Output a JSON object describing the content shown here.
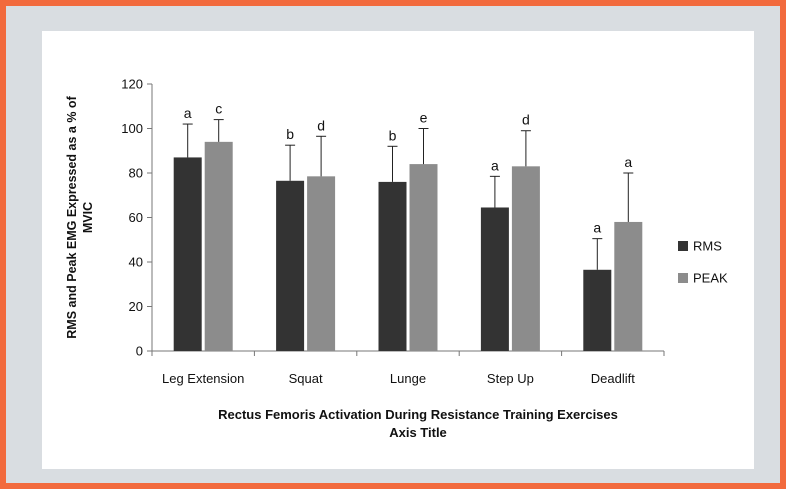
{
  "chart_data": {
    "type": "bar",
    "categories": [
      "Leg Extension",
      "Squat",
      "Lunge",
      "Step Up",
      "Deadlift"
    ],
    "series": [
      {
        "name": "RMS",
        "values": [
          87,
          76.5,
          76,
          64.5,
          36.5
        ],
        "errors": [
          15,
          16,
          16,
          14,
          14
        ],
        "significance": [
          "a",
          "b",
          "b",
          "a",
          "a"
        ],
        "color": "#333333"
      },
      {
        "name": "PEAK",
        "values": [
          94,
          78.5,
          84,
          83,
          58
        ],
        "errors": [
          10,
          18,
          16,
          16,
          22
        ],
        "significance": [
          "c",
          "d",
          "e",
          "d",
          "a"
        ],
        "color": "#8c8c8c"
      }
    ],
    "ylim": [
      0,
      120
    ],
    "yticks": [
      0,
      20,
      40,
      60,
      80,
      100,
      120
    ],
    "ylabel_line1": "RMS and Peak EMG Expressed as a % of",
    "ylabel_line2": "MVIC",
    "xlabel_line1": "Rectus Femoris Activation During Resistance Training Exercises",
    "xlabel_line2": "Axis Title",
    "legend_position": "right",
    "grid": false
  }
}
